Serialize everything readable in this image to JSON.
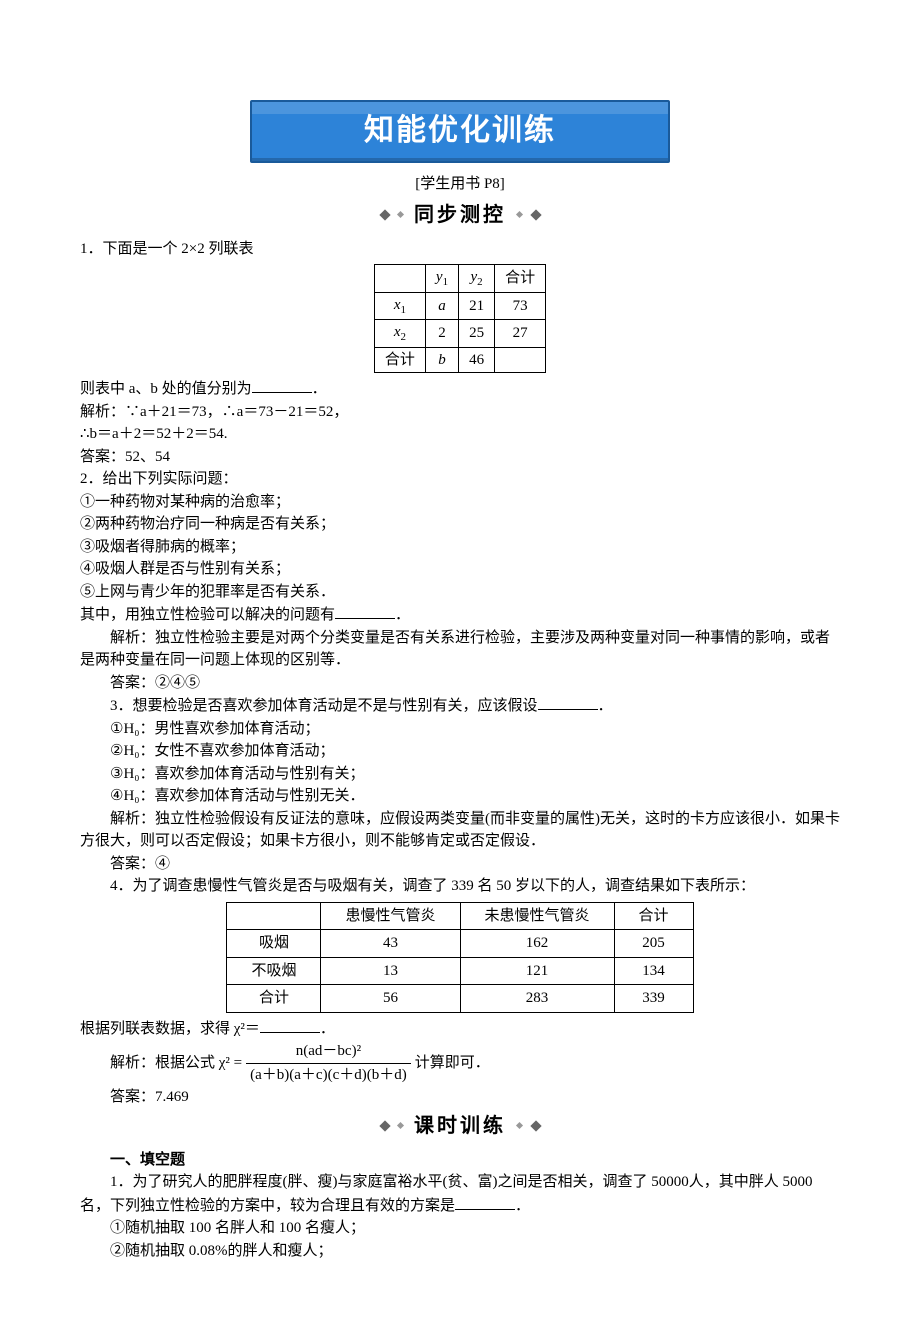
{
  "banner": {
    "title": "知能优化训练"
  },
  "subhead": "[学生用书 P8]",
  "section1_label": "同步测控",
  "section2_label": "课时训练",
  "q1": {
    "lead": "1．下面是一个 2×2 列联表",
    "table": {
      "headers": [
        "",
        "y₁",
        "y₂",
        "合计"
      ],
      "rows": [
        [
          "x₁",
          "a",
          "21",
          "73"
        ],
        [
          "x₂",
          "2",
          "25",
          "27"
        ],
        [
          "合计",
          "b",
          "46",
          ""
        ]
      ]
    },
    "fill": "则表中 a、b 处的值分别为",
    "sol1": "解析：∵a＋21＝73，∴a＝73－21＝52，",
    "sol2": "∴b＝a＋2＝52＋2＝54.",
    "ans": "答案：52、54"
  },
  "q2": {
    "lead": "2．给出下列实际问题：",
    "i1": "①一种药物对某种病的治愈率；",
    "i2": "②两种药物治疗同一种病是否有关系；",
    "i3": "③吸烟者得肺病的概率；",
    "i4": "④吸烟人群是否与性别有关系；",
    "i5": "⑤上网与青少年的犯罪率是否有关系．",
    "fill": "其中，用独立性检验可以解决的问题有",
    "sol": "解析：独立性检验主要是对两个分类变量是否有关系进行检验，主要涉及两种变量对同一种事情的影响，或者是两种变量在同一问题上体现的区别等．",
    "ans": "答案：②④⑤"
  },
  "q3": {
    "lead": "3．想要检验是否喜欢参加体育活动是不是与性别有关，应该假设",
    "i1": "①H₀：男性喜欢参加体育活动；",
    "i2": "②H₀：女性不喜欢参加体育活动；",
    "i3": "③H₀：喜欢参加体育活动与性别有关；",
    "i4": "④H₀：喜欢参加体育活动与性别无关．",
    "sol": "解析：独立性检验假设有反证法的意味，应假设两类变量(而非变量的属性)无关，这时的卡方应该很小．如果卡方很大，则可以否定假设；如果卡方很小，则不能够肯定或否定假设．",
    "ans": "答案：④"
  },
  "q4": {
    "lead": "4．为了调查患慢性气管炎是否与吸烟有关，调查了 339 名 50 岁以下的人，调查结果如下表所示：",
    "table": {
      "headers": [
        "",
        "患慢性气管炎",
        "未患慢性气管炎",
        "合计"
      ],
      "rows": [
        [
          "吸烟",
          "43",
          "162",
          "205"
        ],
        [
          "不吸烟",
          "13",
          "121",
          "134"
        ],
        [
          "合计",
          "56",
          "283",
          "339"
        ]
      ]
    },
    "fill": "根据列联表数据，求得 χ²＝",
    "formula_pre": "解析：根据公式 χ² =",
    "formula_num": "n(ad－bc)²",
    "formula_den": "(a＋b)(a＋c)(c＋d)(b＋d)",
    "formula_post": "计算即可．",
    "ans": "答案：7.469"
  },
  "part2": {
    "head": "一、填空题",
    "q1": "1．为了研究人的肥胖程度(胖、瘦)与家庭富裕水平(贫、富)之间是否相关，调查了 50000人，其中胖人 5000 名，下列独立性检验的方案中，较为合理且有效的方案是",
    "i1": "①随机抽取 100 名胖人和 100 名瘦人；",
    "i2": "②随机抽取 0.08%的胖人和瘦人；"
  },
  "colors": {
    "banner_bg": "#2d83d8",
    "banner_border": "#1a5a9a",
    "banner_text": "#ffffff",
    "text": "#000000"
  }
}
